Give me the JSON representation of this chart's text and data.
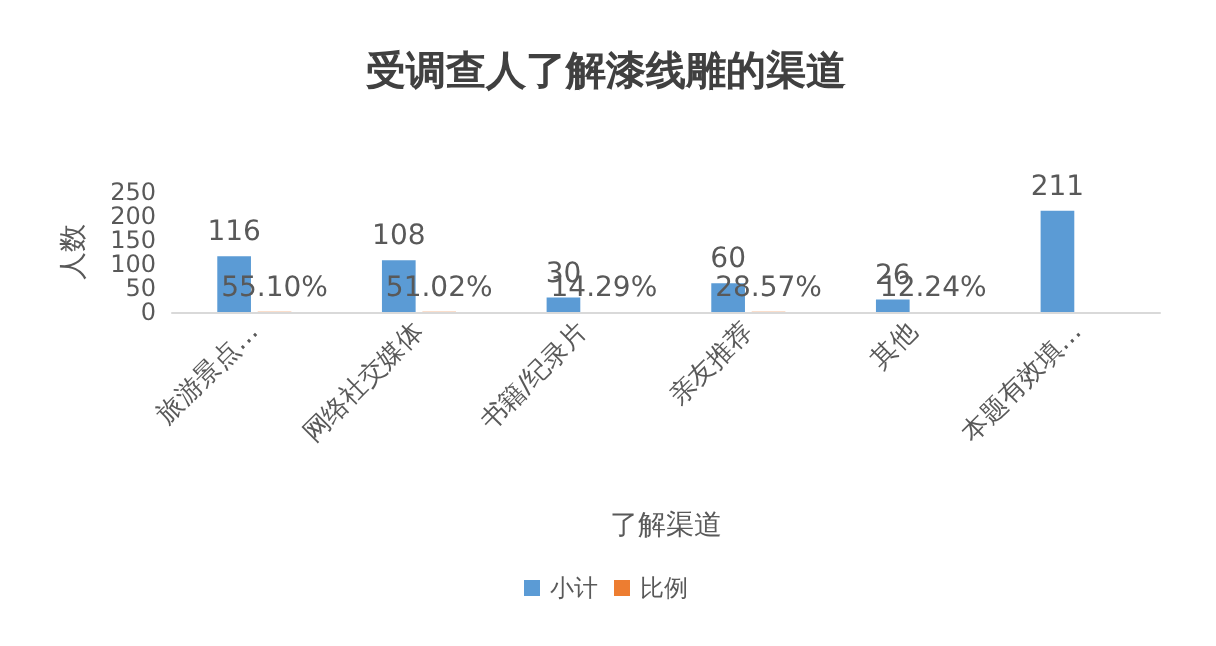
{
  "chart_data": {
    "type": "bar",
    "title": "受调查人了解漆线雕的渠道",
    "xlabel": "了解渠道",
    "ylabel": "人数",
    "categories": [
      "旅游景点…",
      "网络社交媒体",
      "书籍/纪录片",
      "亲友推荐",
      "其他",
      "本题有效填…"
    ],
    "series": [
      {
        "name": "小计",
        "color": "#5b9bd5",
        "values": [
          116,
          108,
          30,
          60,
          26,
          211
        ],
        "value_labels": [
          "116",
          "108",
          "30",
          "60",
          "26",
          "211"
        ]
      },
      {
        "name": "比例",
        "color": "#ed7d31",
        "values": [
          0.551,
          0.5102,
          0.1429,
          0.2857,
          0.1224,
          null
        ],
        "value_labels": [
          "55.10%",
          "51.02%",
          "14.29%",
          "28.57%",
          "12.24%",
          null
        ]
      }
    ],
    "ylim": [
      0,
      250
    ],
    "yticks": [
      0,
      50,
      100,
      150,
      200,
      250
    ],
    "grid": false,
    "legend": "bottom"
  }
}
